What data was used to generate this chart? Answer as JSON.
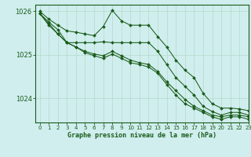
{
  "title": "Graphe pression niveau de la mer (hPa)",
  "bg_color": "#d0eeee",
  "grid_color": "#b8ddd0",
  "line_color": "#1a5c1a",
  "xlim": [
    -0.5,
    23
  ],
  "ylim": [
    1023.45,
    1026.15
  ],
  "yticks": [
    1024,
    1025,
    1026
  ],
  "xticks": [
    0,
    1,
    2,
    3,
    4,
    5,
    6,
    7,
    8,
    9,
    10,
    11,
    12,
    13,
    14,
    15,
    16,
    17,
    18,
    19,
    20,
    21,
    22,
    23
  ],
  "series": [
    [
      1026.0,
      1025.82,
      1025.68,
      1025.55,
      1025.52,
      1025.48,
      1025.44,
      1025.65,
      1026.02,
      1025.78,
      1025.68,
      1025.68,
      1025.68,
      1025.42,
      1025.18,
      1024.88,
      1024.65,
      1024.48,
      1024.12,
      1023.88,
      1023.78,
      1023.78,
      1023.76,
      1023.72
    ],
    [
      1025.95,
      1025.75,
      1025.58,
      1025.28,
      1025.28,
      1025.28,
      1025.28,
      1025.3,
      1025.28,
      1025.28,
      1025.28,
      1025.28,
      1025.28,
      1025.08,
      1024.78,
      1024.48,
      1024.28,
      1024.08,
      1023.82,
      1023.7,
      1023.62,
      1023.68,
      1023.68,
      1023.62
    ],
    [
      1025.95,
      1025.72,
      1025.48,
      1025.28,
      1025.18,
      1025.08,
      1025.02,
      1024.98,
      1025.08,
      1024.98,
      1024.88,
      1024.82,
      1024.78,
      1024.62,
      1024.38,
      1024.18,
      1023.98,
      1023.82,
      1023.72,
      1023.62,
      1023.58,
      1023.62,
      1023.62,
      1023.58
    ],
    [
      1025.95,
      1025.68,
      1025.48,
      1025.28,
      1025.18,
      1025.05,
      1024.98,
      1024.92,
      1025.02,
      1024.92,
      1024.82,
      1024.78,
      1024.72,
      1024.58,
      1024.32,
      1024.08,
      1023.88,
      1023.78,
      1023.68,
      1023.58,
      1023.52,
      1023.58,
      1023.58,
      1023.52
    ]
  ]
}
